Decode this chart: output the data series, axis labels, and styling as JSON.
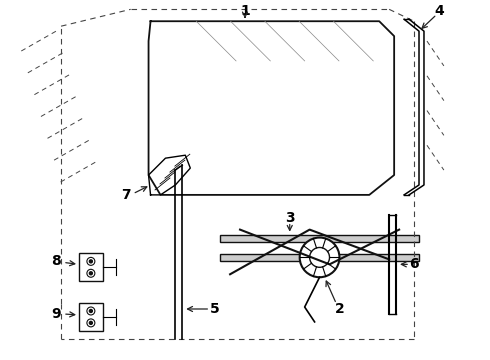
{
  "bg_color": "#ffffff",
  "line_color": "#000000",
  "fig_width": 4.9,
  "fig_height": 3.6,
  "dpi": 100
}
